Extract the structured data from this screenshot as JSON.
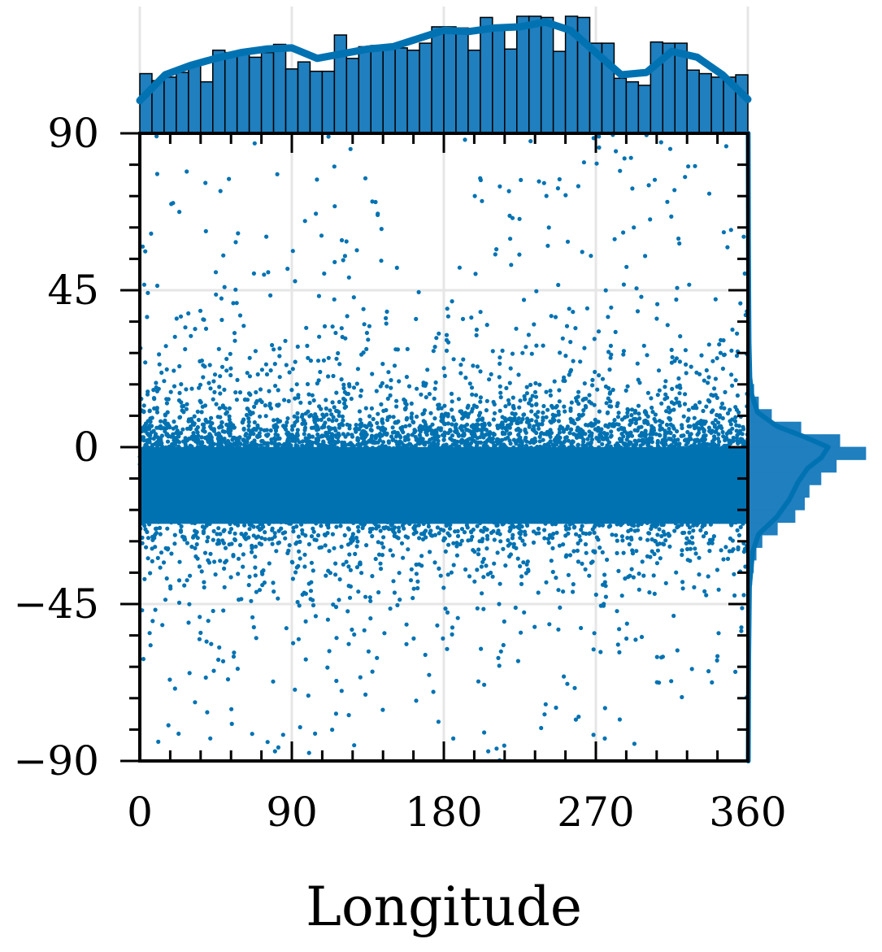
{
  "chart_data": {
    "type": "scatter",
    "title": "",
    "xlabel": "Longitude",
    "ylabel": "",
    "xlim": [
      0,
      360
    ],
    "ylim": [
      -90,
      90
    ],
    "x_ticks": [
      "0",
      "90",
      "180",
      "270",
      "360"
    ],
    "y_ticks": [
      "90",
      "45",
      "0",
      "−45",
      "−90"
    ],
    "x_tick_values": [
      0,
      90,
      180,
      270,
      360
    ],
    "y_tick_values": [
      90,
      45,
      0,
      -45,
      -90
    ],
    "grid": true,
    "colors": {
      "points": "#0072b2",
      "bars": "#1f7fbf",
      "bar_edge": "#000000",
      "kde": "#0072b2",
      "grid": "#e6e6e6"
    },
    "marginal_top": {
      "type": "histogram",
      "bin_width": 7.2,
      "bin_starts": [
        0,
        7.2,
        14.4,
        21.6,
        28.8,
        36,
        43.2,
        50.4,
        57.6,
        64.8,
        72,
        79.2,
        86.4,
        93.6,
        100.8,
        108,
        115.2,
        122.4,
        129.6,
        136.8,
        144,
        151.2,
        158.4,
        165.6,
        172.8,
        180,
        187.2,
        194.4,
        201.6,
        208.8,
        216,
        223.2,
        230.4,
        237.6,
        244.8,
        252,
        259.2,
        266.4,
        273.6,
        280.8,
        288,
        295.2,
        302.4,
        309.6,
        316.8,
        324,
        331.2,
        338.4,
        345.6,
        352.8
      ],
      "counts": [
        0.51,
        0.45,
        0.48,
        0.52,
        0.58,
        0.44,
        0.71,
        0.69,
        0.69,
        0.65,
        0.69,
        0.76,
        0.55,
        0.61,
        0.53,
        0.53,
        0.84,
        0.64,
        0.74,
        0.75,
        0.74,
        0.73,
        0.71,
        0.77,
        0.91,
        0.91,
        0.9,
        0.71,
        0.99,
        0.91,
        0.72,
        1.0,
        1.0,
        0.99,
        0.7,
        1.0,
        0.99,
        0.77,
        0.77,
        0.47,
        0.44,
        0.41,
        0.78,
        0.77,
        0.77,
        0.54,
        0.51,
        0.48,
        0.48,
        0.5
      ],
      "kde": {
        "x": [
          0,
          15,
          30,
          45,
          60,
          75,
          90,
          105,
          120,
          135,
          150,
          165,
          180,
          195,
          210,
          225,
          240,
          255,
          270,
          285,
          300,
          315,
          330,
          345,
          360
        ],
        "y": [
          0.28,
          0.5,
          0.58,
          0.64,
          0.69,
          0.72,
          0.73,
          0.64,
          0.68,
          0.72,
          0.74,
          0.81,
          0.88,
          0.87,
          0.9,
          0.91,
          0.95,
          0.88,
          0.69,
          0.5,
          0.52,
          0.7,
          0.65,
          0.5,
          0.29
        ]
      }
    },
    "marginal_right": {
      "type": "histogram",
      "bin_width": 3.6,
      "bin_centers": [
        -88.2,
        -84.6,
        -81,
        -77.4,
        -73.8,
        -70.2,
        -66.6,
        -63,
        -59.4,
        -55.8,
        -52.2,
        -48.6,
        -45,
        -41.4,
        -37.8,
        -34.2,
        -30.6,
        -27,
        -23.4,
        -19.8,
        -16.2,
        -12.6,
        -9,
        -5.4,
        -1.8,
        1.8,
        5.4,
        9,
        12.6,
        16.2,
        19.8,
        23.4,
        27,
        30.6,
        34.2,
        37.8,
        41.4,
        45,
        48.6,
        52.2,
        55.8,
        59.4,
        63,
        66.6,
        70.2,
        73.8,
        77.4,
        81,
        84.6,
        88.2
      ],
      "counts": [
        0.005,
        0.005,
        0.006,
        0.006,
        0.007,
        0.008,
        0.009,
        0.01,
        0.012,
        0.014,
        0.016,
        0.018,
        0.02,
        0.025,
        0.033,
        0.047,
        0.07,
        0.12,
        0.25,
        0.4,
        0.48,
        0.52,
        0.62,
        0.75,
        1.0,
        0.78,
        0.45,
        0.2,
        0.09,
        0.05,
        0.03,
        0.022,
        0.017,
        0.013,
        0.011,
        0.009,
        0.008,
        0.007,
        0.006,
        0.006,
        0.005,
        0.005,
        0.004,
        0.004,
        0.004,
        0.004,
        0.003,
        0.003,
        0.003,
        0.003
      ],
      "kde": {
        "y": [
          -90,
          -60,
          -40,
          -30,
          -25,
          -20,
          -15,
          -10,
          -6,
          -3,
          0,
          3,
          6,
          10,
          15,
          20,
          30,
          45,
          60,
          90
        ],
        "x": [
          0.004,
          0.008,
          0.016,
          0.05,
          0.11,
          0.3,
          0.43,
          0.52,
          0.62,
          0.76,
          0.83,
          0.58,
          0.3,
          0.1,
          0.04,
          0.02,
          0.012,
          0.008,
          0.006,
          0.003
        ]
      }
    },
    "scatter_density": {
      "description": "points concentrated in a band near latitude -8 to 0, spreading with lower density toward the poles",
      "band_center_latitude": -7,
      "band_core_halfwidth": 9,
      "total_points_approx": 20000
    }
  }
}
